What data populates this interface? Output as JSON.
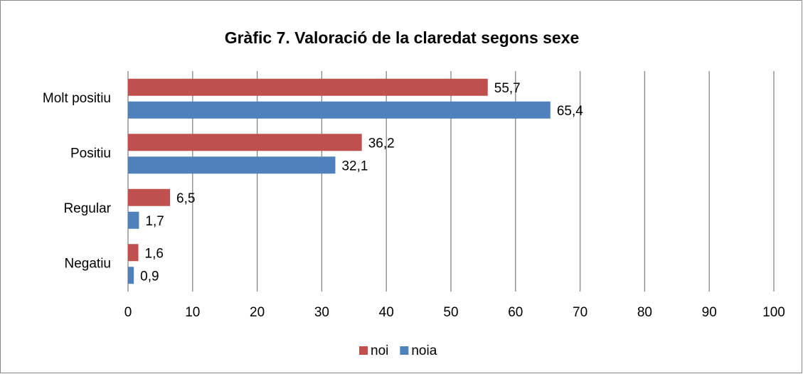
{
  "chart_data": {
    "type": "bar",
    "orientation": "horizontal",
    "title": "Gràfic 7. Valoració de la claredat segons sexe",
    "categories": [
      "Molt positiu",
      "Positiu",
      "Regular",
      "Negatiu"
    ],
    "series": [
      {
        "name": "noi",
        "color": "#c0504d",
        "values": [
          55.7,
          36.2,
          6.5,
          1.6
        ],
        "value_labels": [
          "55,7",
          "36,2",
          "6,5",
          "1,6"
        ]
      },
      {
        "name": "noia",
        "color": "#4f81bd",
        "values": [
          65.4,
          32.1,
          1.7,
          0.9
        ],
        "value_labels": [
          "65,4",
          "32,1",
          "1,7",
          "0,9"
        ]
      }
    ],
    "xlim": [
      0,
      100
    ],
    "xticks": [
      0,
      10,
      20,
      30,
      40,
      50,
      60,
      70,
      80,
      90,
      100
    ],
    "grid": true,
    "legend": "bottom"
  }
}
